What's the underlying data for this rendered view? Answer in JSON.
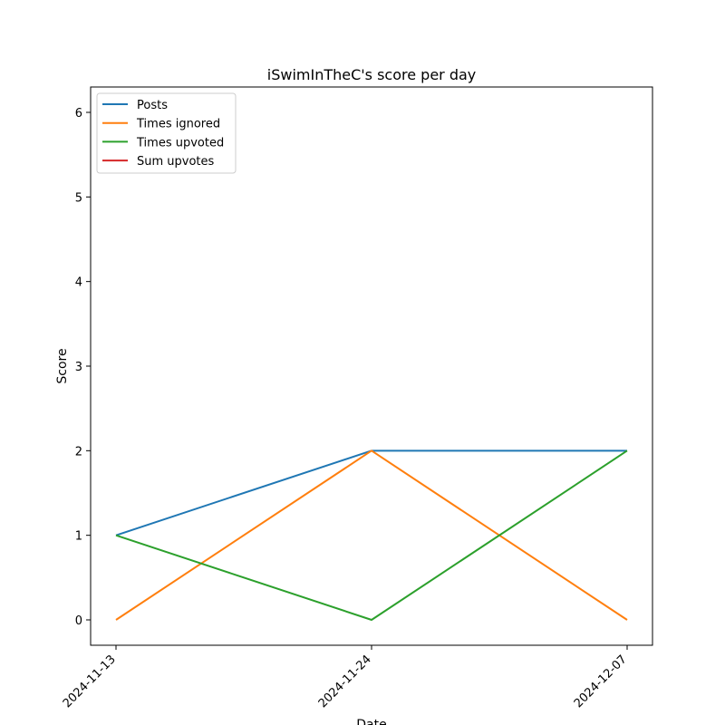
{
  "chart_data": {
    "type": "line",
    "title": "iSwimInTheC's score per day",
    "xlabel": "Date",
    "ylabel": "Score",
    "categories": [
      "2024-11-13",
      "2024-11-24",
      "2024-12-07"
    ],
    "ylim": [
      -0.3,
      6.3
    ],
    "yticks": [
      0,
      1,
      2,
      3,
      4,
      5,
      6
    ],
    "grid": false,
    "legend_position": "top-left",
    "series": [
      {
        "name": "Posts",
        "color": "#1f77b4",
        "values": [
          1,
          2,
          2
        ]
      },
      {
        "name": "Times ignored",
        "color": "#ff7f0e",
        "values": [
          0,
          2,
          0
        ]
      },
      {
        "name": "Times upvoted",
        "color": "#2ca02c",
        "values": [
          1,
          0,
          2
        ]
      },
      {
        "name": "Sum upvotes",
        "color": "#d62728",
        "values": [
          null,
          null,
          null
        ]
      }
    ]
  }
}
